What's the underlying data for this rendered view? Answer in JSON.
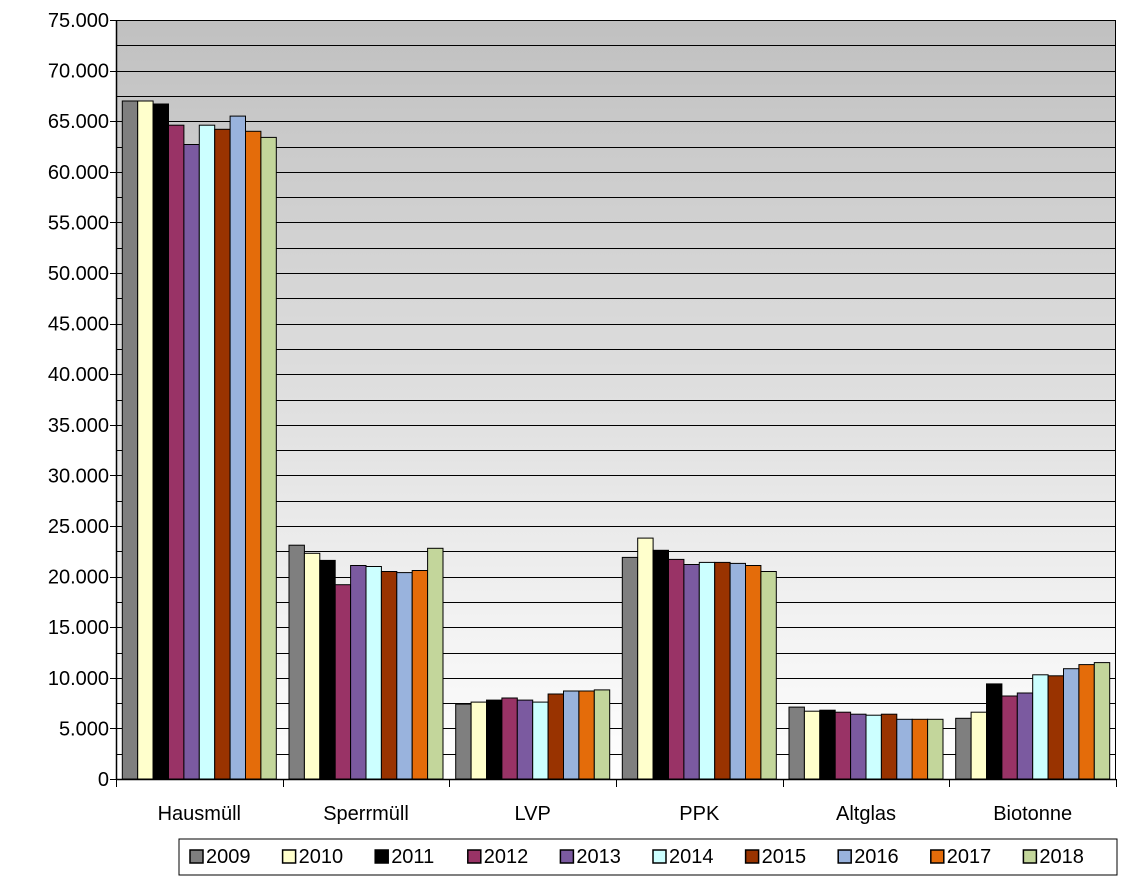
{
  "chart_data": {
    "type": "bar",
    "categories": [
      "Hausmüll",
      "Sperrmüll",
      "LVP",
      "PPK",
      "Altglas",
      "Biotonne"
    ],
    "ylim": [
      0,
      75000
    ],
    "yticks": [
      0,
      5000,
      10000,
      15000,
      20000,
      25000,
      30000,
      35000,
      40000,
      45000,
      50000,
      55000,
      60000,
      65000,
      70000,
      75000
    ],
    "ytick_labels": [
      "0",
      "5.000",
      "10.000",
      "15.000",
      "20.000",
      "25.000",
      "30.000",
      "35.000",
      "40.000",
      "45.000",
      "50.000",
      "55.000",
      "60.000",
      "65.000",
      "70.000",
      "75.000"
    ],
    "grid": true,
    "minor_grid_step": 2500,
    "legend_position": "bottom-right",
    "series": [
      {
        "name": "2009",
        "color": "#7f7f7f",
        "values": [
          67000,
          23100,
          7400,
          21900,
          7100,
          6000
        ]
      },
      {
        "name": "2010",
        "color": "#ffffcc",
        "values": [
          67000,
          22300,
          7600,
          23800,
          6700,
          6600
        ]
      },
      {
        "name": "2011",
        "color": "#000000",
        "values": [
          66700,
          21600,
          7800,
          22600,
          6800,
          9400
        ]
      },
      {
        "name": "2012",
        "color": "#993366",
        "values": [
          64600,
          19200,
          8000,
          21700,
          6600,
          8200
        ]
      },
      {
        "name": "2013",
        "color": "#7b5aa0",
        "values": [
          62700,
          21100,
          7800,
          21200,
          6400,
          8500
        ]
      },
      {
        "name": "2014",
        "color": "#ccffff",
        "values": [
          64600,
          21000,
          7600,
          21400,
          6300,
          10300
        ]
      },
      {
        "name": "2015",
        "color": "#993300",
        "values": [
          64200,
          20500,
          8400,
          21400,
          6400,
          10200
        ]
      },
      {
        "name": "2016",
        "color": "#99b3dd",
        "values": [
          65500,
          20400,
          8700,
          21300,
          5900,
          10900
        ]
      },
      {
        "name": "2017",
        "color": "#e46c0a",
        "values": [
          64000,
          20600,
          8700,
          21100,
          5900,
          11300
        ]
      },
      {
        "name": "2018",
        "color": "#c3d69b",
        "values": [
          63400,
          22800,
          8800,
          20500,
          5900,
          11500
        ]
      }
    ]
  }
}
